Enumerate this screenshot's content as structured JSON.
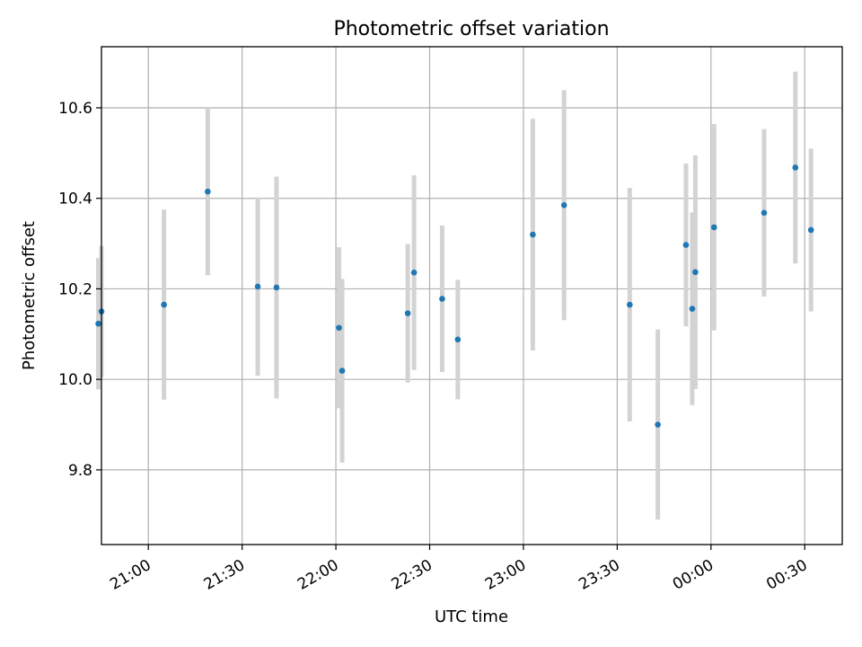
{
  "chart_data": {
    "type": "scatter",
    "title": "Photometric offset variation",
    "xlabel": "UTC time",
    "ylabel": "Photometric offset",
    "x_is_time": true,
    "xlim": [
      "20:45",
      "00:42"
    ],
    "ylim": [
      9.635,
      10.735
    ],
    "xticks": [
      "21:00",
      "21:30",
      "22:00",
      "22:30",
      "23:00",
      "23:30",
      "00:00",
      "00:30"
    ],
    "yticks": [
      9.8,
      10.0,
      10.2,
      10.4,
      10.6
    ],
    "ytick_labels": [
      "9.8",
      "10.0",
      "10.2",
      "10.4",
      "10.6"
    ],
    "grid": true,
    "colors": {
      "point": "#1f77b4",
      "errorbar": "#d3d3d3"
    },
    "points": [
      {
        "x": "20:44",
        "y": 10.123,
        "err": 0.145
      },
      {
        "x": "20:45",
        "y": 10.15,
        "err": 0.145
      },
      {
        "x": "21:05",
        "y": 10.165,
        "err": 0.21
      },
      {
        "x": "21:19",
        "y": 10.415,
        "err": 0.185
      },
      {
        "x": "21:35",
        "y": 10.205,
        "err": 0.197
      },
      {
        "x": "21:41",
        "y": 10.203,
        "err": 0.245
      },
      {
        "x": "22:01",
        "y": 10.114,
        "err": 0.178
      },
      {
        "x": "22:02",
        "y": 10.019,
        "err": 0.203
      },
      {
        "x": "22:23",
        "y": 10.146,
        "err": 0.153
      },
      {
        "x": "22:25",
        "y": 10.236,
        "err": 0.215
      },
      {
        "x": "22:34",
        "y": 10.178,
        "err": 0.162
      },
      {
        "x": "22:39",
        "y": 10.088,
        "err": 0.132
      },
      {
        "x": "23:03",
        "y": 10.32,
        "err": 0.256
      },
      {
        "x": "23:13",
        "y": 10.385,
        "err": 0.254
      },
      {
        "x": "23:34",
        "y": 10.165,
        "err": 0.258
      },
      {
        "x": "23:43",
        "y": 9.9,
        "err": 0.21
      },
      {
        "x": "23:52",
        "y": 10.297,
        "err": 0.18
      },
      {
        "x": "23:54",
        "y": 10.156,
        "err": 0.213
      },
      {
        "x": "23:55",
        "y": 10.237,
        "err": 0.258
      },
      {
        "x": "00:01",
        "y": 10.336,
        "err": 0.228
      },
      {
        "x": "00:17",
        "y": 10.368,
        "err": 0.185
      },
      {
        "x": "00:27",
        "y": 10.468,
        "err": 0.212
      },
      {
        "x": "00:32",
        "y": 10.33,
        "err": 0.18
      }
    ]
  }
}
